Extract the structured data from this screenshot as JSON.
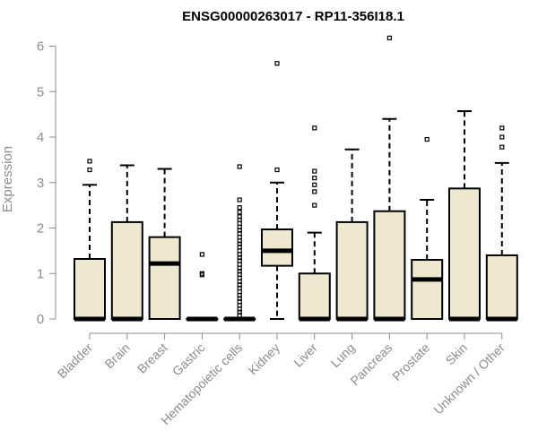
{
  "chart_data": {
    "type": "box",
    "title": "ENSG00000263017 - RP11-356I18.1",
    "xlabel": "",
    "ylabel": "Expression",
    "ylim": [
      0,
      6
    ],
    "yticks": [
      0,
      1,
      2,
      3,
      4,
      5,
      6
    ],
    "grid": false,
    "legend": "none",
    "colors": {
      "box_fill": "#efe8d0",
      "box_stroke": "#000000",
      "axis": "#8c8c8c"
    },
    "categories": [
      "Bladder",
      "Brain",
      "Breast",
      "Gastric",
      "Hematopoietic cells",
      "Kidney",
      "Liver",
      "Lung",
      "Pancreas",
      "Prostate",
      "Skin",
      "Unknown / Other"
    ],
    "boxes": [
      {
        "category": "Bladder",
        "min": 0,
        "q1": 0,
        "median": 0,
        "q3": 1.32,
        "max": 2.95,
        "outliers": [
          3.28,
          3.47
        ]
      },
      {
        "category": "Brain",
        "min": 0,
        "q1": 0,
        "median": 0,
        "q3": 2.13,
        "max": 3.38,
        "outliers": []
      },
      {
        "category": "Breast",
        "min": 0,
        "q1": 0,
        "median": 1.22,
        "q3": 1.8,
        "max": 3.3,
        "outliers": []
      },
      {
        "category": "Gastric",
        "min": 0,
        "q1": 0,
        "median": 0,
        "q3": 0,
        "max": 0,
        "outliers": [
          0.97,
          1.0,
          1.42
        ]
      },
      {
        "category": "Hematopoietic cells",
        "min": 0,
        "q1": 0,
        "median": 0,
        "q3": 0,
        "max": 0,
        "outliers": [
          0.08,
          0.15,
          0.22,
          0.3,
          0.38,
          0.45,
          0.52,
          0.6,
          0.68,
          0.75,
          0.82,
          0.9,
          0.98,
          1.05,
          1.12,
          1.2,
          1.28,
          1.35,
          1.42,
          1.5,
          1.58,
          1.65,
          1.72,
          1.8,
          1.88,
          1.95,
          2.02,
          2.1,
          2.18,
          2.25,
          2.35,
          2.45,
          2.62,
          3.35
        ]
      },
      {
        "category": "Kidney",
        "min": 0,
        "q1": 1.17,
        "median": 1.5,
        "q3": 1.97,
        "max": 3.0,
        "outliers": [
          3.28,
          5.62
        ]
      },
      {
        "category": "Liver",
        "min": 0,
        "q1": 0,
        "median": 0,
        "q3": 1.0,
        "max": 1.9,
        "outliers": [
          2.5,
          2.8,
          2.95,
          3.1,
          3.25,
          4.2
        ]
      },
      {
        "category": "Lung",
        "min": 0,
        "q1": 0,
        "median": 0,
        "q3": 2.13,
        "max": 3.73,
        "outliers": []
      },
      {
        "category": "Pancreas",
        "min": 0,
        "q1": 0,
        "median": 0,
        "q3": 2.37,
        "max": 4.4,
        "outliers": [
          6.18
        ]
      },
      {
        "category": "Prostate",
        "min": 0,
        "q1": 0,
        "median": 0.87,
        "q3": 1.3,
        "max": 2.62,
        "outliers": [
          3.95
        ]
      },
      {
        "category": "Skin",
        "min": 0,
        "q1": 0,
        "median": 0,
        "q3": 2.87,
        "max": 4.57,
        "outliers": []
      },
      {
        "category": "Unknown / Other",
        "min": 0,
        "q1": 0,
        "median": 0,
        "q3": 1.4,
        "max": 3.43,
        "outliers": [
          3.78,
          4.0,
          4.2
        ]
      }
    ]
  }
}
